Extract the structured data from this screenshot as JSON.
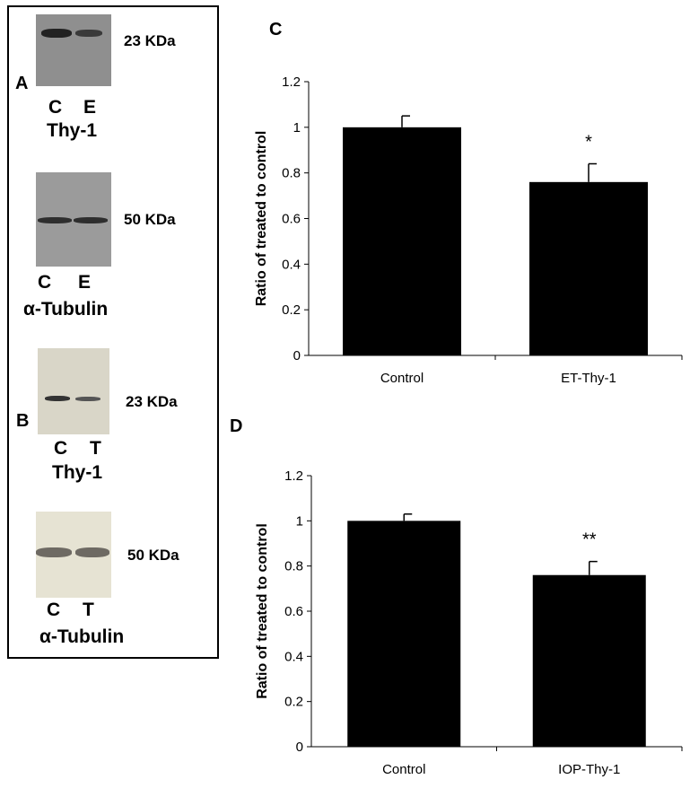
{
  "panels": {
    "A": "A",
    "B": "B",
    "C": "C",
    "D": "D"
  },
  "blots": [
    {
      "kda": "23 KDa",
      "lanes": [
        "C",
        "E"
      ],
      "protein": "Thy-1"
    },
    {
      "kda": "50 KDa",
      "lanes": [
        "C",
        "E"
      ],
      "protein": "α-Tubulin"
    },
    {
      "kda": "23 KDa",
      "lanes": [
        "C",
        "T"
      ],
      "protein": "Thy-1"
    },
    {
      "kda": "50 KDa",
      "lanes": [
        "C",
        "T"
      ],
      "protein": "α-Tubulin"
    }
  ],
  "colors": {
    "bar": "#000000",
    "gel_a": "#9a9a9a",
    "gel_b": "#e4e1d2"
  },
  "chart_data": [
    {
      "type": "bar",
      "panel": "C",
      "categories": [
        "Control",
        "ET-Thy-1"
      ],
      "values": [
        1.0,
        0.76
      ],
      "errors": [
        0.05,
        0.08
      ],
      "annotations": [
        "",
        "*"
      ],
      "ylabel": "Ratio of treated to control",
      "xlabel": "",
      "ylim": [
        0,
        1.2
      ],
      "yticks": [
        "0",
        "0.2",
        "0.4",
        "0.6",
        "0.8",
        "1",
        "1.2"
      ]
    },
    {
      "type": "bar",
      "panel": "D",
      "categories": [
        "Control",
        "IOP-Thy-1"
      ],
      "values": [
        1.0,
        0.76
      ],
      "errors": [
        0.03,
        0.06
      ],
      "annotations": [
        "",
        "**"
      ],
      "ylabel": "Ratio of treated to control",
      "xlabel": "",
      "ylim": [
        0,
        1.2
      ],
      "yticks": [
        "0",
        "0.2",
        "0.4",
        "0.6",
        "0.8",
        "1",
        "1.2"
      ]
    }
  ]
}
